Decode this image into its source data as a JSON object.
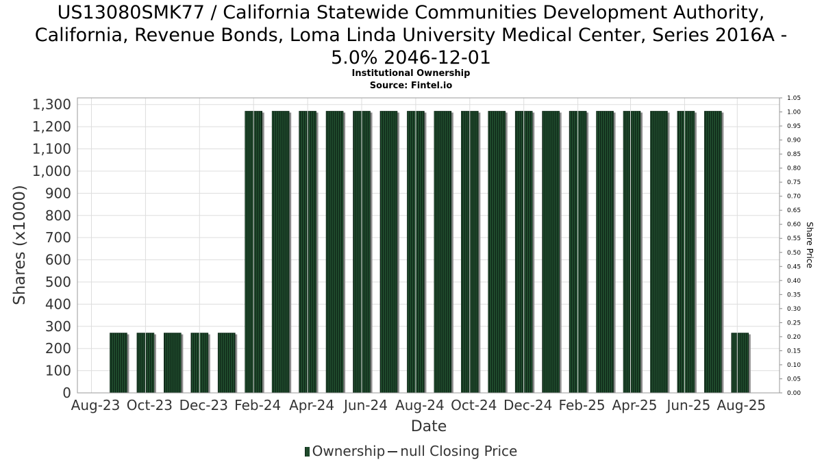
{
  "header": {
    "title_line1": "US13080SMK77 / California Statewide Communities Development Authority,",
    "title_line2": "California, Revenue Bonds, Loma Linda University Medical Center, Series 2016A -",
    "title_line3": "5.0% 2046-12-01",
    "subtitle": "Institutional Ownership",
    "source": "Source: Fintel.io"
  },
  "legend": {
    "ownership_label": "Ownership",
    "price_label": "null Closing Price"
  },
  "colors": {
    "bar_fill": "#1f4a2c",
    "bar_stripe": "#0d2416",
    "bar_shadow": "#8c8c8c",
    "grid": "#dddddd"
  },
  "chart_data": {
    "type": "bar",
    "xlabel": "Date",
    "ylabel": "Shares (x1000)",
    "y2label": "Share Price",
    "ylim": [
      0,
      1330
    ],
    "y2lim": [
      0,
      1.05
    ],
    "yticks": [
      "0",
      "100",
      "200",
      "300",
      "400",
      "500",
      "600",
      "700",
      "800",
      "900",
      "1,000",
      "1,100",
      "1,200",
      "1,300"
    ],
    "y2ticks": [
      "0.00",
      "0.05",
      "0.10",
      "0.15",
      "0.20",
      "0.25",
      "0.30",
      "0.35",
      "0.40",
      "0.45",
      "0.50",
      "0.55",
      "0.60",
      "0.65",
      "0.70",
      "0.75",
      "0.80",
      "0.85",
      "0.90",
      "0.95",
      "1.00",
      "1.05"
    ],
    "xtick_labels": [
      "Aug-23",
      "Oct-23",
      "Dec-23",
      "Feb-24",
      "Apr-24",
      "Jun-24",
      "Aug-24",
      "Oct-24",
      "Dec-24",
      "Feb-25",
      "Apr-25",
      "Jun-25",
      "Aug-25"
    ],
    "grid": true,
    "series": [
      {
        "name": "Ownership",
        "values": [
          270,
          270,
          270,
          270,
          270,
          1270,
          1270,
          1270,
          1270,
          1270,
          1270,
          1270,
          1270,
          1270,
          1270,
          1270,
          1270,
          1270,
          1270,
          1270,
          1270,
          1270,
          1270,
          270
        ]
      }
    ]
  }
}
